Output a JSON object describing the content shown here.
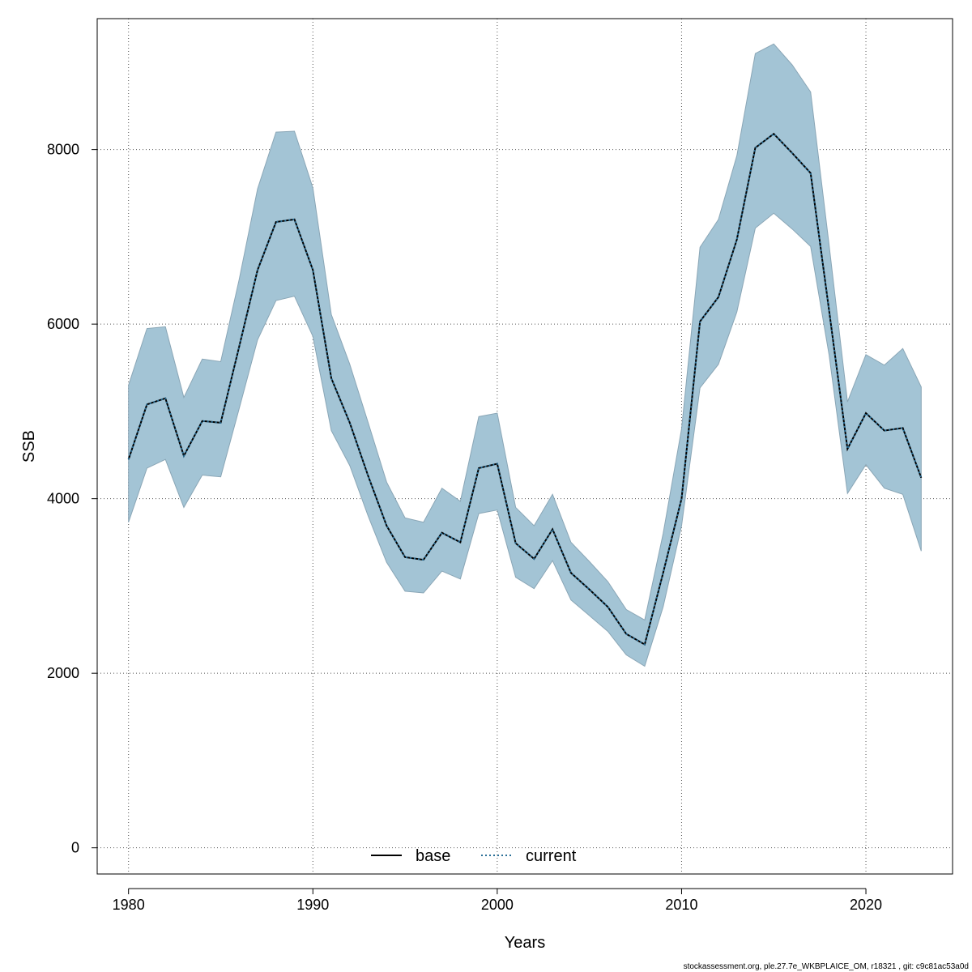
{
  "chart_data": {
    "type": "area",
    "title": "",
    "xlabel": "Years",
    "ylabel": "SSB",
    "xlim": [
      1978.3,
      2024.7
    ],
    "ylim": [
      -300,
      9500
    ],
    "x_ticks": [
      1980,
      1990,
      2000,
      2010,
      2020
    ],
    "y_ticks": [
      0,
      2000,
      4000,
      6000,
      8000
    ],
    "grid": true,
    "legend_position": "bottom",
    "x": [
      1980,
      1981,
      1982,
      1983,
      1984,
      1985,
      1986,
      1987,
      1988,
      1989,
      1990,
      1991,
      1992,
      1993,
      1994,
      1995,
      1996,
      1997,
      1998,
      1999,
      2000,
      2001,
      2002,
      2003,
      2004,
      2005,
      2006,
      2007,
      2008,
      2009,
      2010,
      2011,
      2012,
      2013,
      2014,
      2015,
      2016,
      2017,
      2018,
      2019,
      2020,
      2021,
      2022,
      2023
    ],
    "series": [
      {
        "name": "base",
        "style": "solid",
        "color": "#000000",
        "values": [
          4450,
          5080,
          5150,
          4490,
          4890,
          4870,
          5740,
          6620,
          7170,
          7200,
          6620,
          5380,
          4870,
          4260,
          3690,
          3330,
          3300,
          3610,
          3500,
          4350,
          4400,
          3490,
          3310,
          3650,
          3150,
          2960,
          2760,
          2450,
          2330,
          3150,
          4000,
          6030,
          6310,
          6970,
          8020,
          8180,
          7960,
          7730,
          6160,
          4570,
          4980,
          4780,
          4810,
          4240
        ]
      },
      {
        "name": "current",
        "style": "dotted",
        "color": "#2a6f97",
        "values": [
          4450,
          5080,
          5150,
          4490,
          4890,
          4870,
          5740,
          6620,
          7170,
          7200,
          6620,
          5380,
          4870,
          4260,
          3690,
          3330,
          3300,
          3610,
          3500,
          4350,
          4400,
          3490,
          3310,
          3650,
          3150,
          2960,
          2760,
          2450,
          2330,
          3150,
          4000,
          6030,
          6310,
          6970,
          8020,
          8180,
          7960,
          7730,
          6160,
          4570,
          4980,
          4780,
          4810,
          4240
        ]
      }
    ],
    "band": {
      "color": "#a3c4d5",
      "upper": [
        5300,
        5950,
        5970,
        5160,
        5600,
        5570,
        6510,
        7550,
        8200,
        8210,
        7560,
        6110,
        5540,
        4870,
        4190,
        3780,
        3730,
        4120,
        3970,
        4940,
        4980,
        3900,
        3690,
        4050,
        3500,
        3280,
        3050,
        2730,
        2610,
        3600,
        4800,
        6880,
        7200,
        7930,
        9100,
        9210,
        8970,
        8660,
        6910,
        5110,
        5650,
        5530,
        5720,
        5280
      ],
      "lower": [
        3730,
        4350,
        4450,
        3900,
        4270,
        4250,
        5030,
        5820,
        6270,
        6320,
        5860,
        4780,
        4380,
        3800,
        3270,
        2940,
        2920,
        3170,
        3080,
        3830,
        3870,
        3100,
        2970,
        3290,
        2840,
        2660,
        2480,
        2210,
        2080,
        2760,
        3690,
        5270,
        5540,
        6140,
        7100,
        7270,
        7090,
        6890,
        5650,
        4060,
        4390,
        4120,
        4050,
        3400
      ]
    }
  },
  "footer": {
    "text": "stockassessment.org, ple.27.7e_WKBPLAICE_OM, r18321 , git: c9c81ac53a0d"
  }
}
